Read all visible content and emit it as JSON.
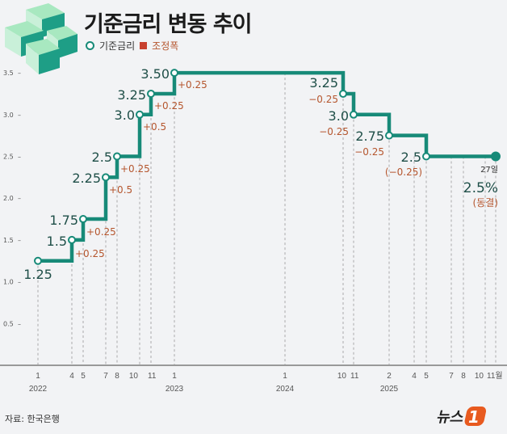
{
  "header": {
    "title": "기준금리 변동 추이",
    "legend": [
      {
        "label": "기준금리",
        "icon": "circle-icon"
      },
      {
        "label": "조정폭",
        "icon": "square-icon"
      }
    ]
  },
  "footer": {
    "source": "자료: 한국은행",
    "logo_text": "뉴스",
    "logo_mark": "1"
  },
  "colors": {
    "line": "#178a78",
    "change": "#b5562e",
    "value": "#1f4f48"
  },
  "chart_data": {
    "type": "line",
    "step": true,
    "ylim": [
      0,
      3.5
    ],
    "yticks": [
      0.5,
      1.0,
      1.5,
      2.0,
      2.5,
      3.0,
      3.5
    ],
    "ytick_labels": [
      "0.5",
      "1.0",
      "1.5",
      "2.0",
      "2.5",
      "3.0",
      "3.5"
    ],
    "xticks": [
      {
        "date": "2022-01",
        "label": "1",
        "year": "2022"
      },
      {
        "date": "2022-04",
        "label": "4"
      },
      {
        "date": "2022-05",
        "label": "5"
      },
      {
        "date": "2022-07",
        "label": "7"
      },
      {
        "date": "2022-08",
        "label": "8"
      },
      {
        "date": "2022-10",
        "label": "10"
      },
      {
        "date": "2022-11",
        "label": "11"
      },
      {
        "date": "2023-01",
        "label": "1",
        "year": "2023"
      },
      {
        "date": "2024-01",
        "label": "1",
        "year": "2024"
      },
      {
        "date": "2024-10",
        "label": "10"
      },
      {
        "date": "2024-11",
        "label": "11"
      },
      {
        "date": "2025-02",
        "label": "2",
        "year": "2025"
      },
      {
        "date": "2025-04",
        "label": "4"
      },
      {
        "date": "2025-05",
        "label": "5"
      },
      {
        "date": "2025-07",
        "label": "7"
      },
      {
        "date": "2025-08",
        "label": "8"
      },
      {
        "date": "2025-10",
        "label": "10"
      },
      {
        "date": "2025-11",
        "label": "11월"
      }
    ],
    "points": [
      {
        "date": "2022-01",
        "value": 1.25,
        "label": "1.25",
        "change": ""
      },
      {
        "date": "2022-04",
        "value": 1.5,
        "label": "1.5",
        "change": "+0.25"
      },
      {
        "date": "2022-05",
        "value": 1.75,
        "label": "1.75",
        "change": "+0.25"
      },
      {
        "date": "2022-07",
        "value": 2.25,
        "label": "2.25",
        "change": "+0.5"
      },
      {
        "date": "2022-08",
        "value": 2.5,
        "label": "2.5",
        "change": "+0.25"
      },
      {
        "date": "2022-10",
        "value": 3.0,
        "label": "3.0",
        "change": "+0.5"
      },
      {
        "date": "2022-11",
        "value": 3.25,
        "label": "3.25",
        "change": "+0.25"
      },
      {
        "date": "2023-01",
        "value": 3.5,
        "label": "3.50",
        "change": "+0.25"
      },
      {
        "date": "2024-10",
        "value": 3.25,
        "label": "3.25",
        "change": "−0.25"
      },
      {
        "date": "2024-11",
        "value": 3.0,
        "label": "3.0",
        "change": "−0.25"
      },
      {
        "date": "2025-02",
        "value": 2.75,
        "label": "2.75",
        "change": "−0.25"
      },
      {
        "date": "2025-05",
        "value": 2.5,
        "label": "2.5",
        "change": "(−0.25)"
      },
      {
        "date": "2025-11",
        "value": 2.5,
        "label": "2.5%",
        "change": "(동결)",
        "day": "27일"
      }
    ]
  }
}
